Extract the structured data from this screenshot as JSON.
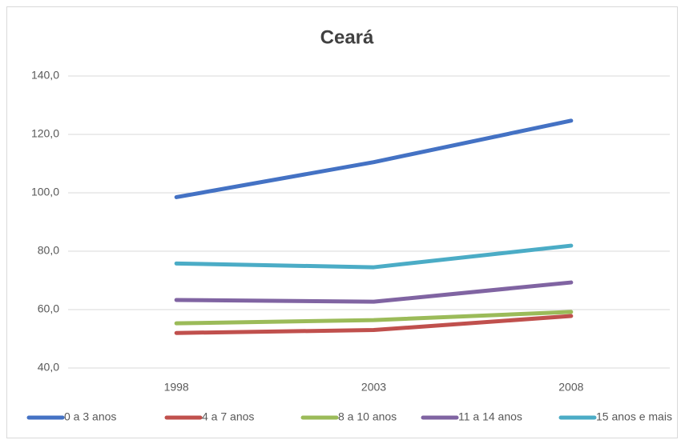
{
  "chart_data": {
    "type": "line",
    "title": "Ceará",
    "categories": [
      "1998",
      "2003",
      "2008"
    ],
    "series": [
      {
        "name": "0 a 3 anos",
        "color": "#4472c4",
        "values": [
          98.5,
          110.5,
          124.7
        ]
      },
      {
        "name": "4 a 7 anos",
        "color": "#c0504d",
        "values": [
          52.0,
          53.0,
          57.8
        ]
      },
      {
        "name": "8 a 10 anos",
        "color": "#9bbb59",
        "values": [
          55.3,
          56.4,
          59.2
        ]
      },
      {
        "name": "11 a 14 anos",
        "color": "#8064a2",
        "values": [
          63.3,
          62.7,
          69.3
        ]
      },
      {
        "name": "15 anos e mais",
        "color": "#4bacc6",
        "values": [
          75.8,
          74.5,
          81.9
        ]
      }
    ],
    "ylim": [
      40,
      140
    ],
    "yticks": [
      {
        "value": 40,
        "label": "40,0"
      },
      {
        "value": 60,
        "label": "60,0"
      },
      {
        "value": 80,
        "label": "80,0"
      },
      {
        "value": 100,
        "label": "100,0"
      },
      {
        "value": 120,
        "label": "120,0"
      },
      {
        "value": 140,
        "label": "140,0"
      }
    ],
    "grid": true,
    "legend": "bottom"
  }
}
